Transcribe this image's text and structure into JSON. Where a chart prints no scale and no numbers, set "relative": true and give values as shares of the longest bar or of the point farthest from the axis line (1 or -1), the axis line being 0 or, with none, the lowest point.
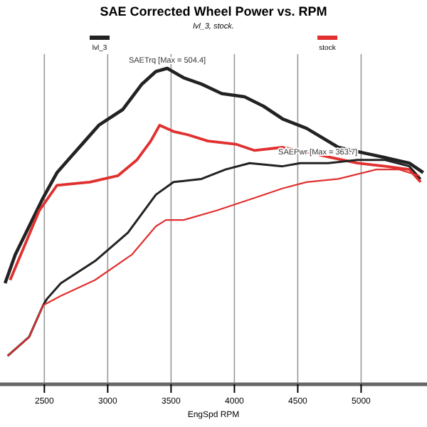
{
  "chart_data": {
    "type": "line",
    "title": "SAE Corrected Wheel Power vs. RPM",
    "subtitle": "lvl_3, stock.",
    "xlabel": "EngSpd RPM",
    "relative": true,
    "grid": "x",
    "legend": "top",
    "xlim": [
      2150,
      5520
    ],
    "xticks": [
      2500,
      3000,
      3500,
      4000,
      4500,
      5000
    ],
    "series": [
      {
        "name": "lvl_3",
        "color": "#222222",
        "x": [
          2190,
          2270,
          2380,
          2490,
          2600,
          2710,
          2820,
          2930,
          3120,
          3270,
          3380,
          3470,
          3600,
          3740,
          3900,
          4080,
          4230,
          4380,
          4570,
          4820,
          4930,
          5160,
          5380,
          5490
        ],
        "values": [
          0.32,
          0.41,
          0.5,
          0.59,
          0.67,
          0.72,
          0.77,
          0.82,
          0.87,
          0.95,
          0.99,
          1,
          0.97,
          0.95,
          0.92,
          0.91,
          0.88,
          0.84,
          0.81,
          0.75,
          0.74,
          0.72,
          0.7,
          0.67
        ]
      },
      {
        "name": "stock",
        "color": "#e0302f",
        "x": [
          2230,
          2460,
          2600,
          2860,
          3080,
          3230,
          3340,
          3410,
          3520,
          3630,
          3790,
          4010,
          4160,
          4380,
          4520,
          4740,
          4970,
          5190,
          5380,
          5470
        ],
        "values": [
          0.33,
          0.55,
          0.63,
          0.64,
          0.66,
          0.71,
          0.77,
          0.82,
          0.8,
          0.79,
          0.77,
          0.76,
          0.74,
          0.75,
          0.74,
          0.72,
          0.7,
          0.69,
          0.68,
          0.64
        ]
      },
      {
        "color": "#222222",
        "x": [
          2210,
          2380,
          2490,
          2520,
          2630,
          2900,
          3160,
          3380,
          3520,
          3740,
          3930,
          4120,
          4380,
          4520,
          4740,
          4970,
          5190,
          5380,
          5470
        ],
        "values": [
          0.09,
          0.15,
          0.25,
          0.27,
          0.32,
          0.39,
          0.48,
          0.6,
          0.64,
          0.65,
          0.68,
          0.7,
          0.69,
          0.7,
          0.7,
          0.71,
          0.71,
          0.69,
          0.65
        ]
      },
      {
        "color": "#e0302f",
        "x": [
          2210,
          2380,
          2490,
          2630,
          2900,
          3190,
          3380,
          3460,
          3600,
          3860,
          4160,
          4380,
          4570,
          4820,
          5120,
          5300,
          5460
        ],
        "values": [
          0.09,
          0.15,
          0.25,
          0.28,
          0.33,
          0.41,
          0.5,
          0.52,
          0.52,
          0.55,
          0.59,
          0.62,
          0.64,
          0.65,
          0.68,
          0.68,
          0.66
        ]
      }
    ],
    "annotations": [
      {
        "text": "SAETrq [Max = 504.4]",
        "x": 3470,
        "y": 1
      },
      {
        "text": "SAEPwr [Max = 363.7]",
        "x": 4970,
        "y": 0.71
      }
    ]
  }
}
